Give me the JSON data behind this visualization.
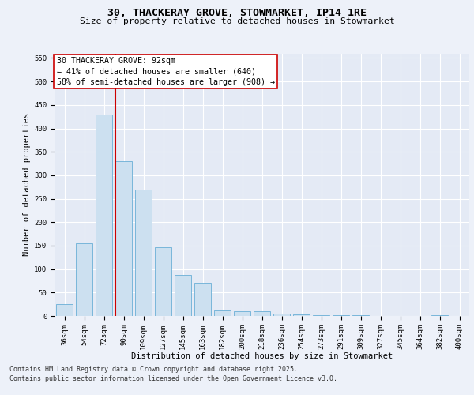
{
  "title_line1": "30, THACKERAY GROVE, STOWMARKET, IP14 1RE",
  "title_line2": "Size of property relative to detached houses in Stowmarket",
  "xlabel": "Distribution of detached houses by size in Stowmarket",
  "ylabel": "Number of detached properties",
  "categories": [
    "36sqm",
    "54sqm",
    "72sqm",
    "90sqm",
    "109sqm",
    "127sqm",
    "145sqm",
    "163sqm",
    "182sqm",
    "200sqm",
    "218sqm",
    "236sqm",
    "254sqm",
    "273sqm",
    "291sqm",
    "309sqm",
    "327sqm",
    "345sqm",
    "364sqm",
    "382sqm",
    "400sqm"
  ],
  "values": [
    25,
    155,
    430,
    330,
    270,
    147,
    87,
    70,
    12,
    10,
    10,
    5,
    4,
    2,
    2,
    1,
    0,
    0,
    0,
    2,
    0
  ],
  "bar_color": "#cce0f0",
  "bar_edge_color": "#6aafd6",
  "annotation_text": "30 THACKERAY GROVE: 92sqm\n← 41% of detached houses are smaller (640)\n58% of semi-detached houses are larger (908) →",
  "annotation_box_color": "#ffffff",
  "annotation_border_color": "#cc0000",
  "property_line_color": "#cc0000",
  "ylim": [
    0,
    560
  ],
  "yticks": [
    0,
    50,
    100,
    150,
    200,
    250,
    300,
    350,
    400,
    450,
    500,
    550
  ],
  "background_color": "#edf1f9",
  "plot_bg_color": "#e4eaf5",
  "grid_color": "#ffffff",
  "title_fontsize": 9.5,
  "subtitle_fontsize": 8.2,
  "axis_label_fontsize": 7.5,
  "tick_fontsize": 6.5,
  "annotation_fontsize": 7.2,
  "footer_fontsize": 6.0,
  "footer_line1": "Contains HM Land Registry data © Crown copyright and database right 2025.",
  "footer_line2": "Contains public sector information licensed under the Open Government Licence v3.0."
}
